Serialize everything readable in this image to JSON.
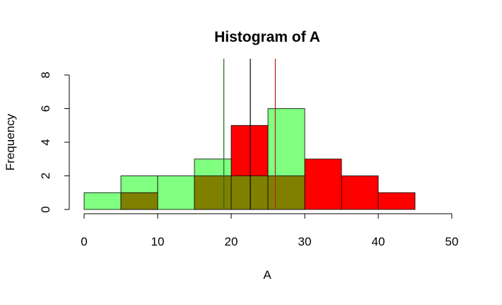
{
  "chart_data": {
    "type": "bar",
    "title": "Histogram of A",
    "xlabel": "A",
    "ylabel": "Frequency",
    "xlim": [
      0,
      50
    ],
    "ylim": [
      0,
      8
    ],
    "x_ticks": [
      0,
      10,
      20,
      30,
      40,
      50
    ],
    "y_ticks": [
      0,
      2,
      4,
      6,
      8
    ],
    "grid": false,
    "series": [
      {
        "color": "#ff0000",
        "bins": [
          {
            "start": 5,
            "end": 10,
            "count": 1
          },
          {
            "start": 20,
            "end": 25,
            "count": 5
          },
          {
            "start": 30,
            "end": 35,
            "count": 3
          },
          {
            "start": 35,
            "end": 40,
            "count": 2
          },
          {
            "start": 40,
            "end": 45,
            "count": 1
          }
        ]
      },
      {
        "color": "#80ff80",
        "bins": [
          {
            "start": 0,
            "end": 5,
            "count": 1
          },
          {
            "start": 5,
            "end": 10,
            "count": 2
          },
          {
            "start": 10,
            "end": 15,
            "count": 2
          },
          {
            "start": 15,
            "end": 20,
            "count": 3
          },
          {
            "start": 25,
            "end": 30,
            "count": 6
          }
        ]
      }
    ],
    "overlap_bins": [
      {
        "start": 5,
        "end": 10,
        "count": 1
      },
      {
        "start": 15,
        "end": 20,
        "count": 2
      },
      {
        "start": 20,
        "end": 25,
        "count": 2
      },
      {
        "start": 25,
        "end": 30,
        "count": 2
      }
    ],
    "overlap_color": "#808000",
    "vertical_lines": [
      {
        "x": 19,
        "color": "#1a6b1a"
      },
      {
        "x": 22.6,
        "color": "#000000"
      },
      {
        "x": 26,
        "color": "#b22222"
      }
    ]
  }
}
